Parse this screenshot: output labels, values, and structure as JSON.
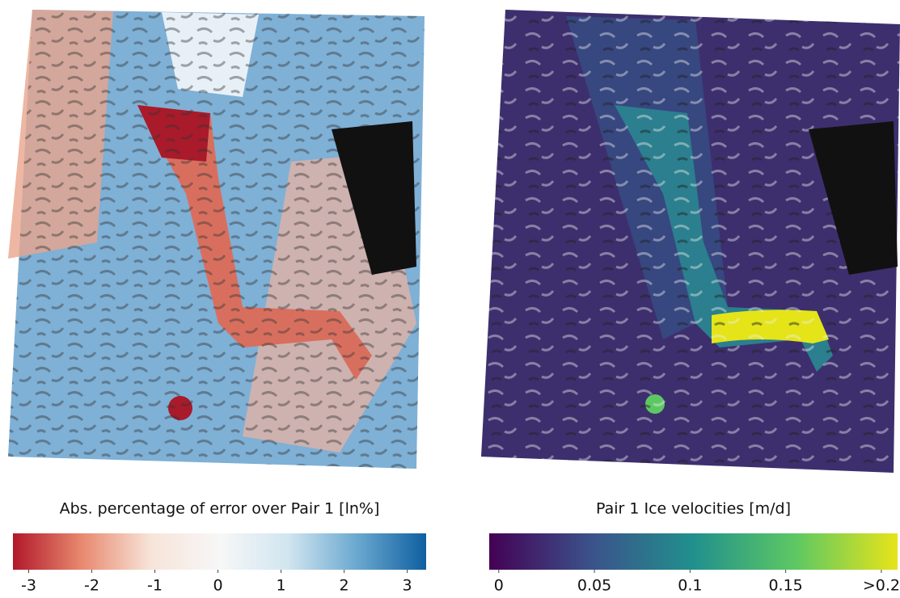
{
  "panels": [
    {
      "title": "Abs. percentage of error over Pair 1 [ln%]",
      "colorbar": {
        "lim": [
          -3.25,
          3.3
        ],
        "ticks": [
          -3,
          -2,
          -1,
          0,
          1,
          2,
          3
        ],
        "colors": [
          "#b2182b",
          "#e8896f",
          "#f7e4d9",
          "#f7f7f7",
          "#d1e5f0",
          "#6aa8cf",
          "#0f5fa0"
        ]
      }
    },
    {
      "title": "Pair 1 Ice velocities [m/d]",
      "colorbar": {
        "lim": [
          -0.005,
          0.2085
        ],
        "ticks": [
          0,
          0.05,
          0.1,
          0.15,
          {
            "value": 0.2,
            "label": ">0.2"
          }
        ],
        "colors": [
          "#440154",
          "#3b528b",
          "#21908d",
          "#5dc863",
          "#e7e419"
        ]
      }
    }
  ]
}
